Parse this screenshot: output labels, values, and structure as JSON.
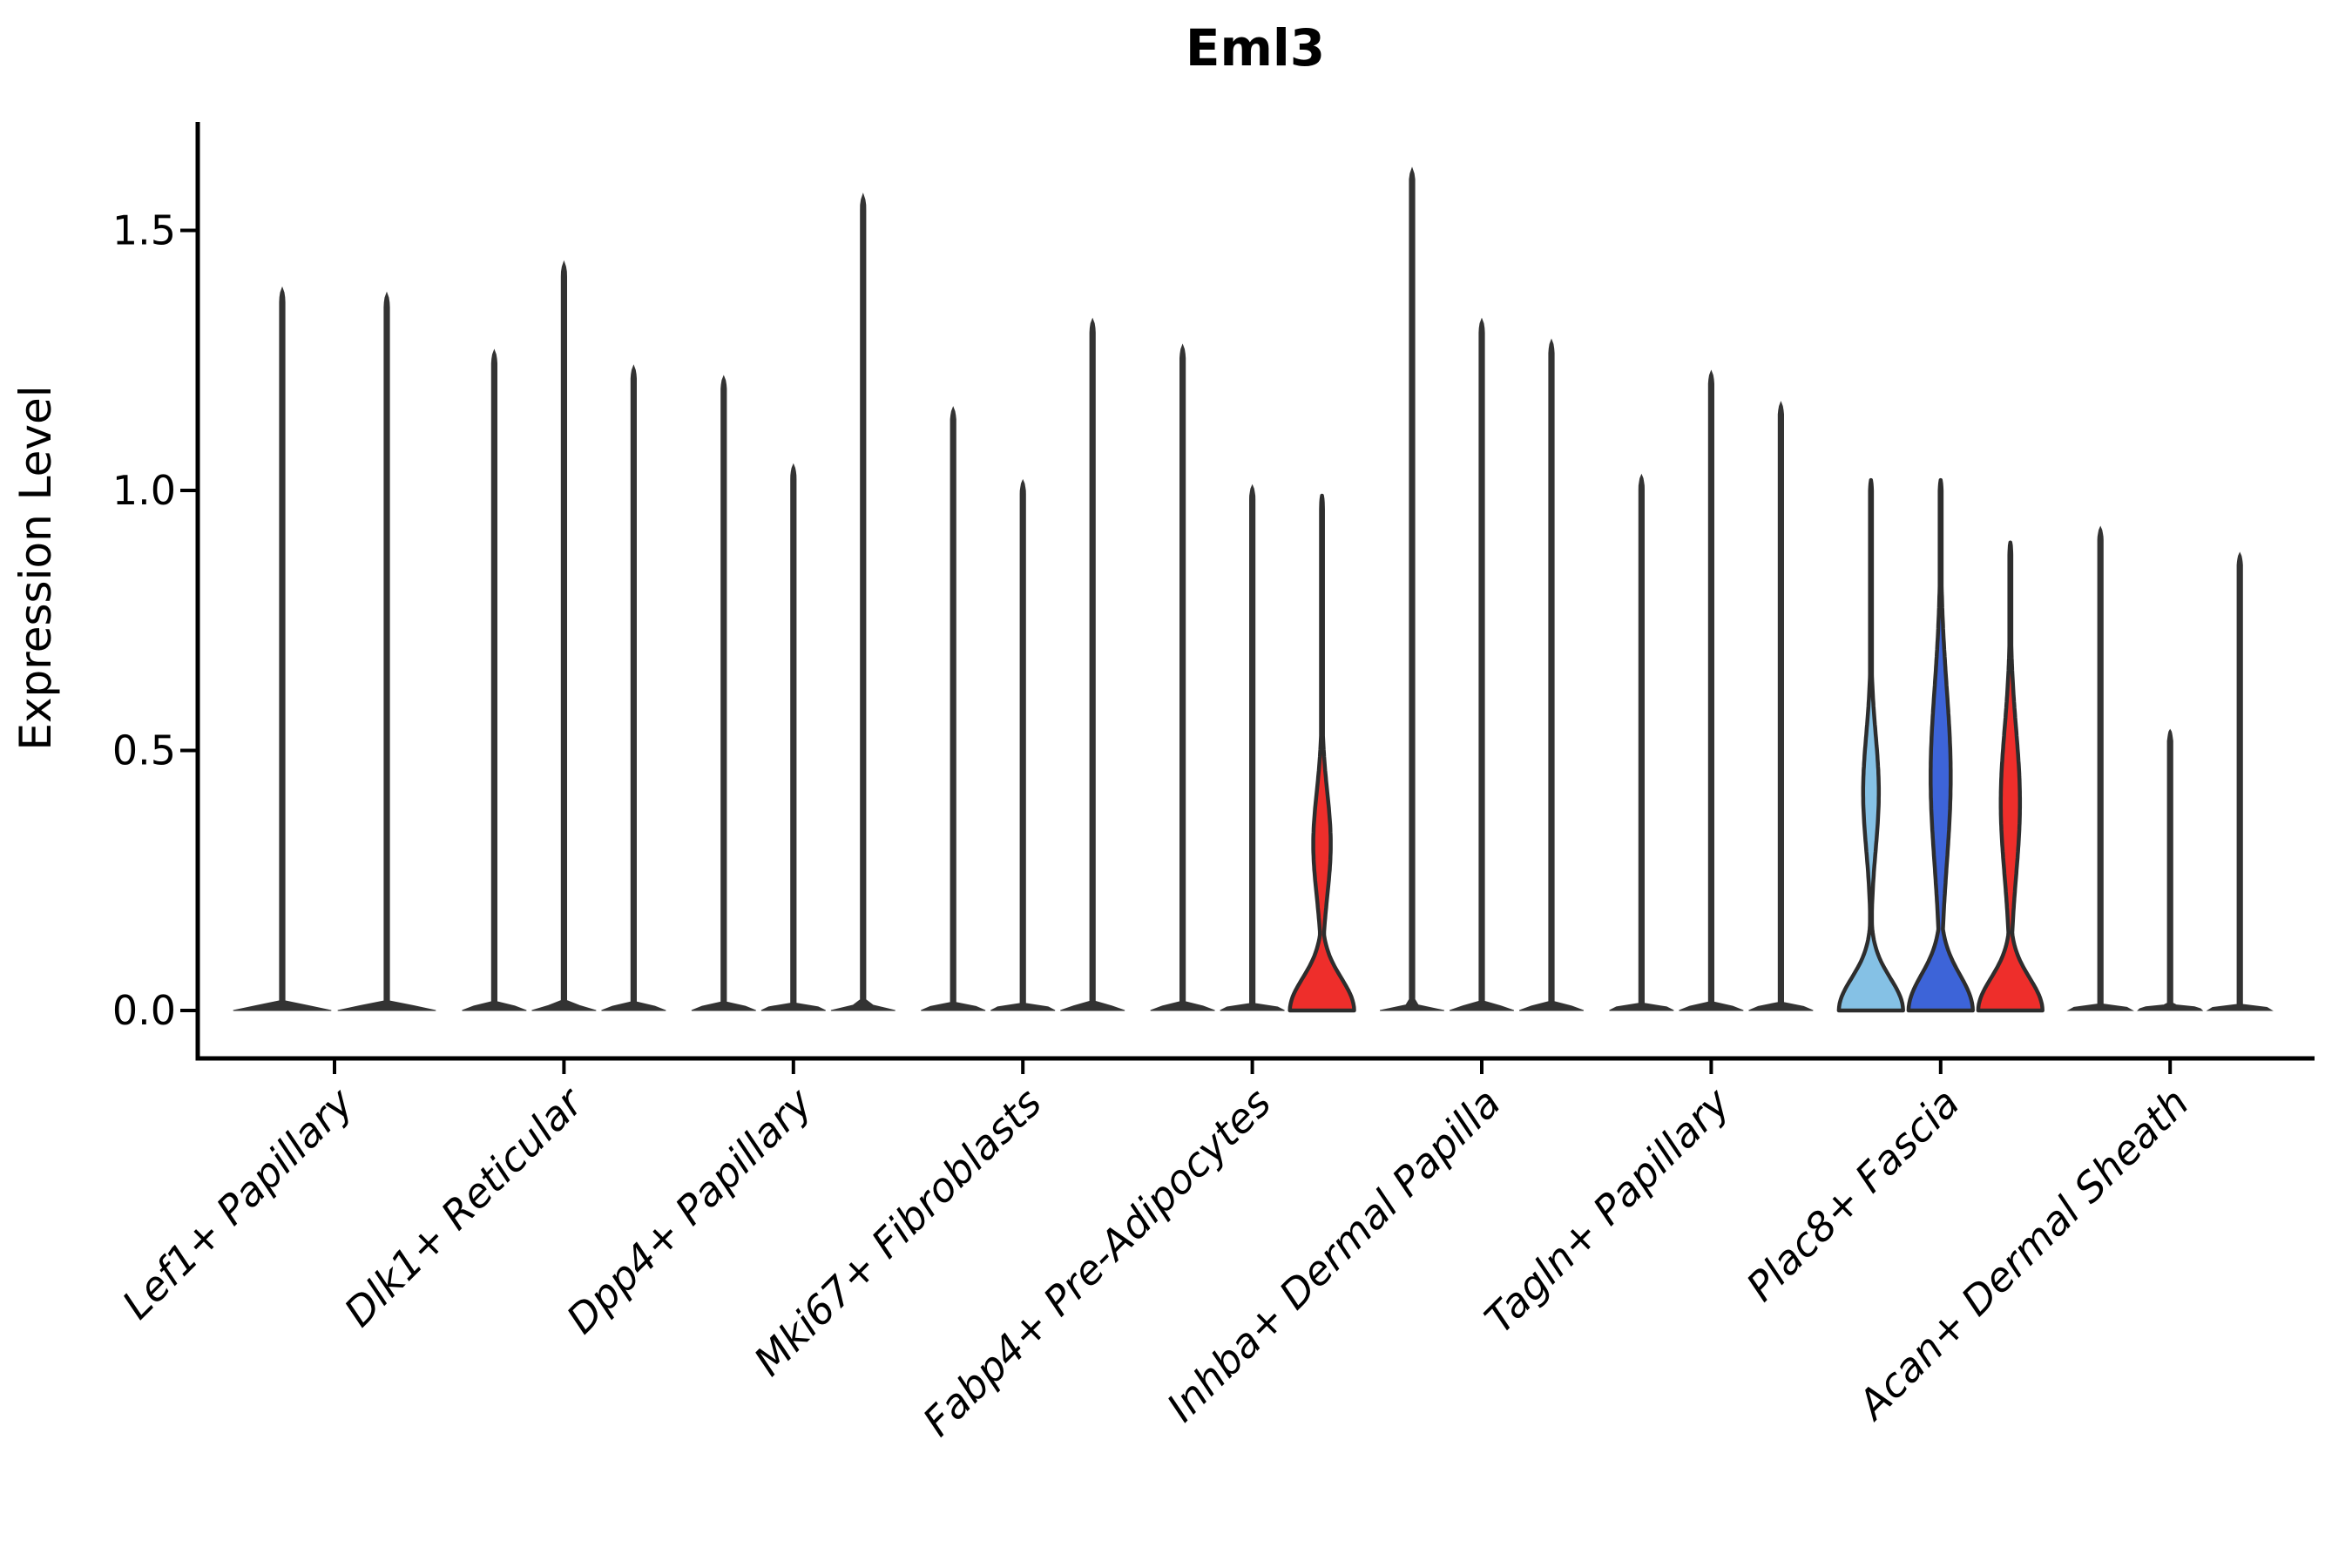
{
  "title": "Eml3",
  "ylabel": "Expression Level",
  "chart_data": {
    "type": "violin",
    "title": "Eml3",
    "xlabel": "",
    "ylabel": "Expression Level",
    "ylim": [
      -0.09,
      1.7
    ],
    "yticks": [
      "0.0",
      "0.5",
      "1.0",
      "1.5"
    ],
    "ytick_values": [
      0.0,
      0.5,
      1.0,
      1.5
    ],
    "grid": false,
    "legend": "none",
    "colors": {
      "outline": "#2d2d2d",
      "thin_violin": "#333333",
      "red": "#ee2e2b",
      "light_blue": "#85c1e5",
      "dark_blue": "#3d64d8",
      "axis": "#000000",
      "background": "#ffffff"
    },
    "categories": [
      "Lef1+ Papillary",
      "Dlk1+ Reticular",
      "Dpp4+ Papillary",
      "Mki67+ Fibroblasts",
      "Fabp4+ Pre-Adipocytes",
      "Inhba+ Dermal Papilla",
      "Tagln+ Papillary",
      "Plac8+ Fascia",
      "Acan+ Dermal Sheath"
    ],
    "groups": [
      {
        "label": "Lef1+ Papillary",
        "violins": [
          {
            "max": 1.39
          },
          {
            "max": 1.38
          }
        ]
      },
      {
        "label": "Dlk1+ Reticular",
        "violins": [
          {
            "max": 1.27
          },
          {
            "max": 1.44
          },
          {
            "max": 1.24
          }
        ]
      },
      {
        "label": "Dpp4+ Papillary",
        "violins": [
          {
            "max": 1.22
          },
          {
            "max": 1.05
          },
          {
            "max": 1.57
          }
        ]
      },
      {
        "label": "Mki67+ Fibroblasts",
        "violins": [
          {
            "max": 1.16
          },
          {
            "max": 1.02
          },
          {
            "max": 1.33
          }
        ]
      },
      {
        "label": "Fabp4+ Pre-Adipocytes",
        "violins": [
          {
            "max": 1.28
          },
          {
            "max": 1.01
          },
          {
            "max": 0.99,
            "fill": "#ee2e2b",
            "bulge_center": 0.32,
            "bulge_sigma": 0.1,
            "bulge_half": 10,
            "bell_sigma": 0.062
          }
        ]
      },
      {
        "label": "Inhba+ Dermal Papilla",
        "violins": [
          {
            "max": 1.62
          },
          {
            "max": 1.33
          },
          {
            "max": 1.29
          }
        ]
      },
      {
        "label": "Tagln+ Papillary",
        "violins": [
          {
            "max": 1.03
          },
          {
            "max": 1.23
          },
          {
            "max": 1.17
          }
        ]
      },
      {
        "label": "Plac8+ Fascia",
        "violins": [
          {
            "max": 1.02,
            "fill": "#85c1e5",
            "bulge_center": 0.42,
            "bulge_sigma": 0.11,
            "bulge_half": 9,
            "bell_sigma": 0.062
          },
          {
            "max": 1.02,
            "fill": "#3d64d8",
            "bulge_center": 0.45,
            "bulge_sigma": 0.17,
            "bulge_half": 11.5,
            "bell_sigma": 0.068
          },
          {
            "max": 0.9,
            "fill": "#ee2e2b",
            "bulge_center": 0.4,
            "bulge_sigma": 0.14,
            "bulge_half": 11,
            "bell_sigma": 0.062
          }
        ]
      },
      {
        "label": "Acan+ Dermal Sheath",
        "violins": [
          {
            "max": 0.93
          },
          {
            "max": 0.54
          },
          {
            "max": 0.88
          }
        ]
      }
    ]
  }
}
